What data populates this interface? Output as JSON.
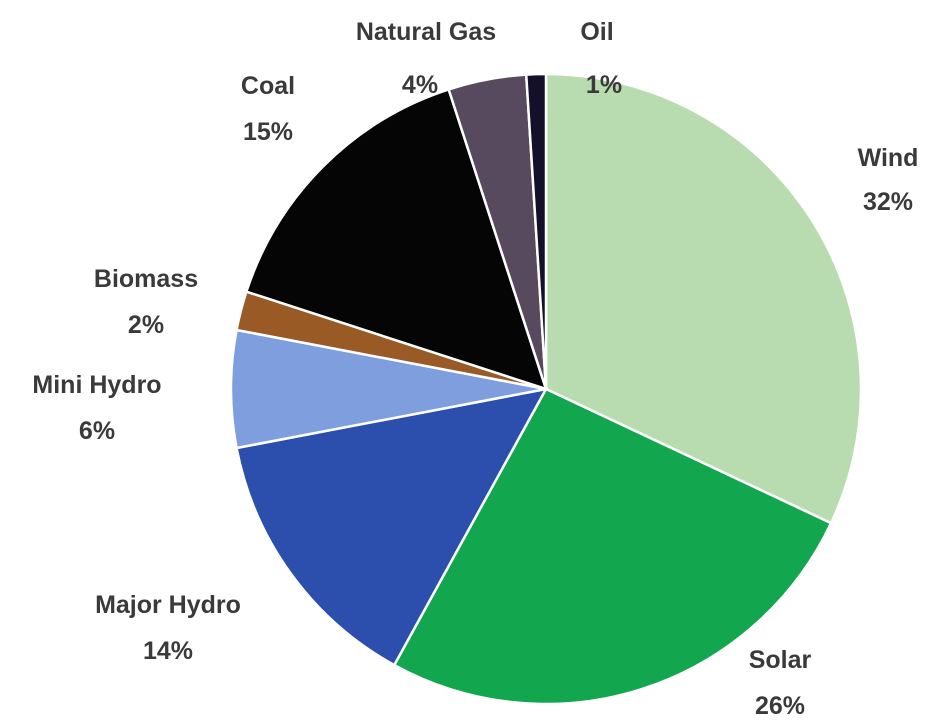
{
  "chart_data": {
    "type": "pie",
    "title": "",
    "start": "12 o'clock",
    "direction": "clockwise",
    "legend": "none",
    "slices": [
      {
        "label": "Wind",
        "value": 32,
        "value_label": "32%",
        "color": "#b8dcb0"
      },
      {
        "label": "Solar",
        "value": 26,
        "value_label": "26%",
        "color": "#12a64f"
      },
      {
        "label": "Major Hydro",
        "value": 14,
        "value_label": "14%",
        "color": "#2c4fae"
      },
      {
        "label": "Mini Hydro",
        "value": 6,
        "value_label": "6%",
        "color": "#7f9ede"
      },
      {
        "label": "Biomass",
        "value": 2,
        "value_label": "2%",
        "color": "#9a5a25"
      },
      {
        "label": "Coal",
        "value": 15,
        "value_label": "15%",
        "color": "#050505"
      },
      {
        "label": "Natural Gas",
        "value": 4,
        "value_label": "4%",
        "color": "#574a5e"
      },
      {
        "label": "Oil",
        "value": 1,
        "value_label": "1%",
        "color": "#14102a"
      }
    ]
  }
}
